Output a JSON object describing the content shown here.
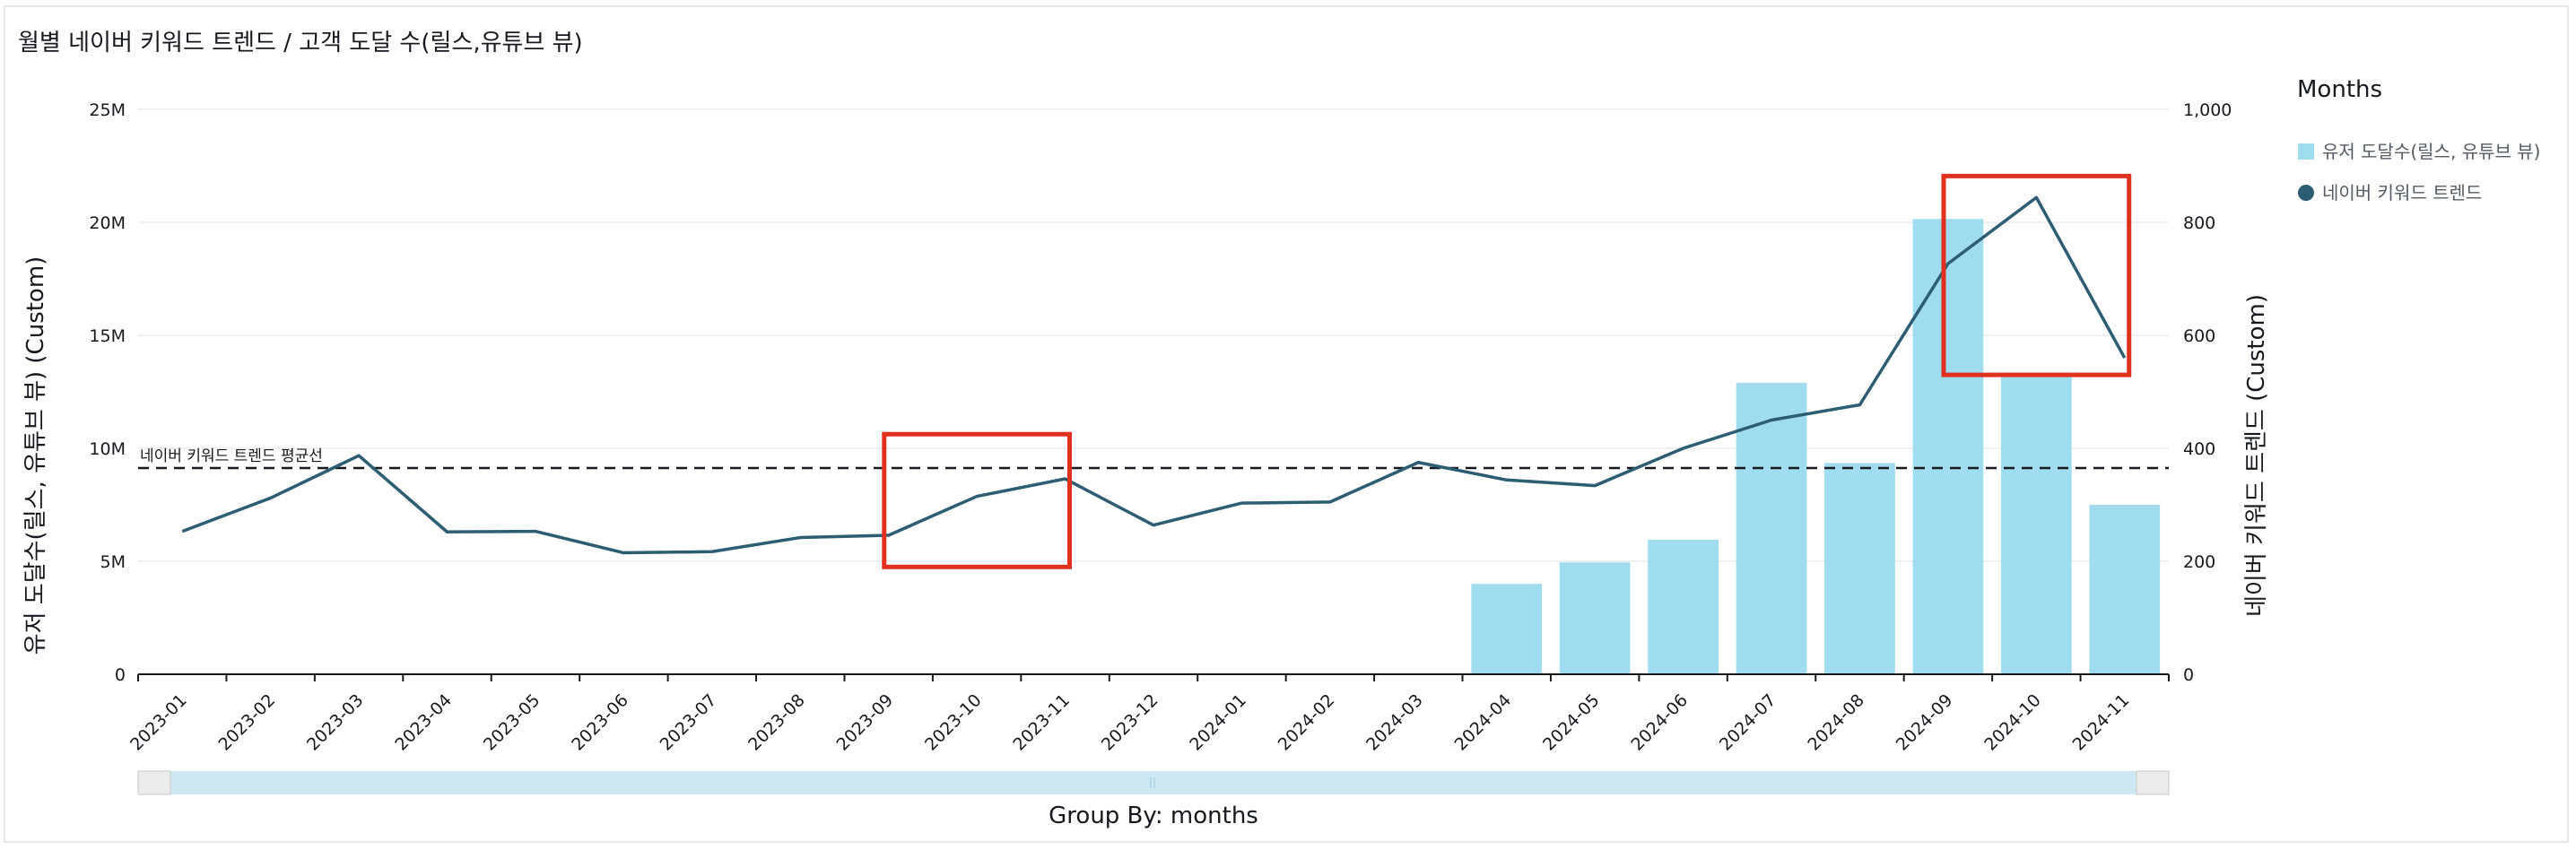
{
  "chart_data": {
    "type": "bar+line",
    "title": "월별 네이버 키워드 트렌드 / 고객 도달 수(릴스,유튜브 뷰)",
    "categories": [
      "2023-01",
      "2023-02",
      "2023-03",
      "2023-04",
      "2023-05",
      "2023-06",
      "2023-07",
      "2023-08",
      "2023-09",
      "2023-10",
      "2023-11",
      "2023-12",
      "2024-01",
      "2024-02",
      "2024-03",
      "2024-04",
      "2024-05",
      "2024-06",
      "2024-07",
      "2024-08",
      "2024-09",
      "2024-10",
      "2024-11"
    ],
    "series": [
      {
        "name": "유저 도달수(릴스, 유튜브 뷰)",
        "type": "bar",
        "axis": "left",
        "color": "#a0dcf0",
        "values": [
          0,
          0,
          0,
          0,
          0,
          0,
          0,
          0,
          0,
          0,
          0,
          0,
          0,
          0,
          0,
          4000000,
          4950000,
          5950000,
          12900000,
          9350000,
          20150000,
          13200000,
          7500000
        ]
      },
      {
        "name": "네이버 키워드 트렌드",
        "type": "line",
        "axis": "right",
        "color": "#2c5d73",
        "values": [
          253,
          312,
          387,
          252,
          253,
          215,
          217,
          242,
          246,
          315,
          346,
          264,
          303,
          305,
          375,
          344,
          334,
          400,
          450,
          477,
          727,
          844,
          560
        ]
      }
    ],
    "ylabel": "유저 도달수(릴스, 유튜브 뷰) (Custom)",
    "y2label": "네이버 키워드 트렌드 (Custom)",
    "ylim": [
      0,
      25000000
    ],
    "y2lim": [
      0,
      1000
    ],
    "yticks": [
      "0",
      "5M",
      "10M",
      "15M",
      "20M",
      "25M"
    ],
    "y2ticks": [
      "0",
      "200",
      "400",
      "600",
      "800",
      "1,000"
    ],
    "reference_line": {
      "label": "네이버 키워드 트렌드 평균선",
      "value": 365,
      "axis": "right",
      "style": "dashed"
    },
    "highlight_boxes": [
      {
        "from": "2023-09",
        "to": "2023-11",
        "y2_range": [
          190,
          425
        ],
        "color": "#e0301e"
      },
      {
        "from": "2024-09",
        "to": "2024-11",
        "y2_range": [
          530,
          882
        ],
        "color": "#e0301e"
      }
    ],
    "legend": {
      "title": "Months",
      "placement": "right"
    },
    "grid": true,
    "group_by_label": "Group By: months"
  }
}
